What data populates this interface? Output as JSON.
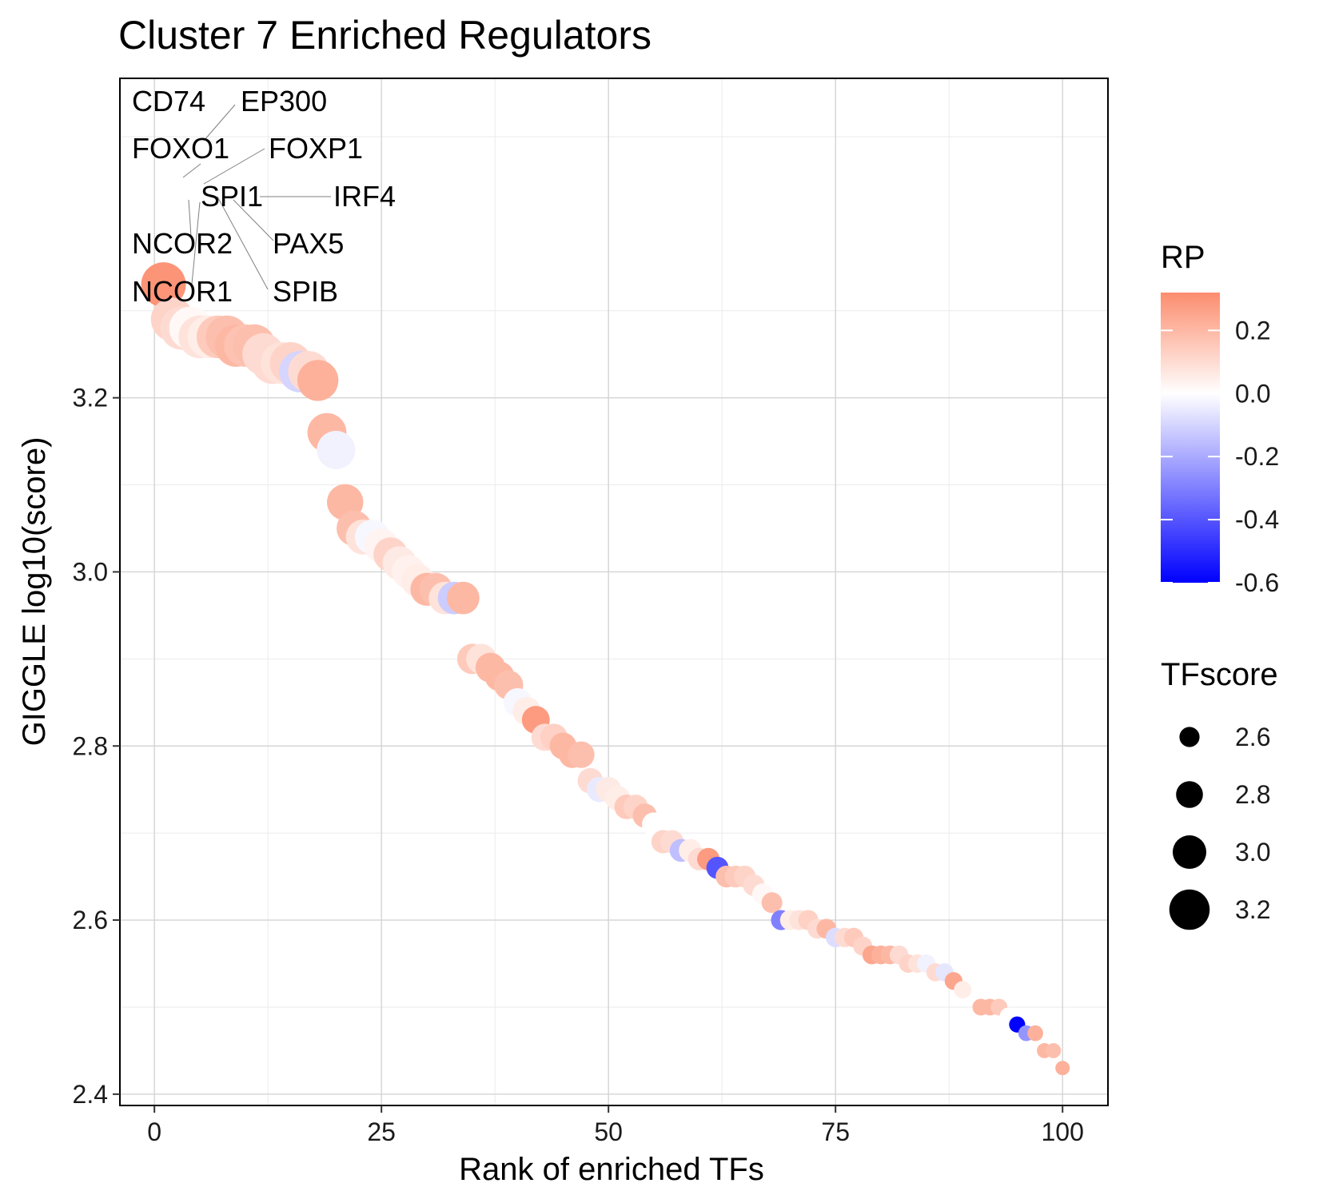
{
  "chart_data": {
    "type": "scatter",
    "title": "Cluster 7 Enriched Regulators",
    "xlabel": "Rank of enriched TFs",
    "ylabel": "GIGGLE log10(score)",
    "xlim": [
      -3.8,
      105
    ],
    "ylim": [
      2.387,
      3.567
    ],
    "x_ticks": [
      0,
      25,
      50,
      75,
      100
    ],
    "y_ticks": [
      2.4,
      2.6,
      2.8,
      3.0,
      3.2
    ],
    "grid": true,
    "legend_position": "right",
    "color_legend": {
      "title": "RP",
      "min": -0.6,
      "max": 0.32,
      "ticks": [
        0.2,
        0.0,
        -0.2,
        -0.4,
        -0.6
      ],
      "tick_labels": [
        "0.2",
        "0.0",
        "-0.2",
        "-0.4",
        "-0.6"
      ],
      "colors": {
        "high": "#fc8d6e",
        "mid": "#ffffff",
        "low": "#0000ff"
      }
    },
    "size_legend": {
      "title": "TFscore",
      "values": [
        2.6,
        2.8,
        3.0,
        3.2
      ],
      "labels": [
        "2.6",
        "2.8",
        "3.0",
        "3.2"
      ]
    },
    "points": [
      {
        "rank": 1,
        "score": 3.33,
        "rp": 0.3
      },
      {
        "rank": 2,
        "score": 3.29,
        "rp": 0.12
      },
      {
        "rank": 3,
        "score": 3.28,
        "rp": 0.1
      },
      {
        "rank": 4,
        "score": 3.28,
        "rp": 0.02
      },
      {
        "rank": 5,
        "score": 3.27,
        "rp": 0.08
      },
      {
        "rank": 6,
        "score": 3.27,
        "rp": 0.05
      },
      {
        "rank": 7,
        "score": 3.27,
        "rp": 0.15
      },
      {
        "rank": 8,
        "score": 3.27,
        "rp": 0.18
      },
      {
        "rank": 9,
        "score": 3.26,
        "rp": 0.2
      },
      {
        "rank": 10,
        "score": 3.26,
        "rp": 0.17
      },
      {
        "rank": 11,
        "score": 3.26,
        "rp": 0.18
      },
      {
        "rank": 12,
        "score": 3.25,
        "rp": 0.1
      },
      {
        "rank": 13,
        "score": 3.24,
        "rp": 0.1
      },
      {
        "rank": 14,
        "score": 3.24,
        "rp": 0.08
      },
      {
        "rank": 15,
        "score": 3.24,
        "rp": 0.12
      },
      {
        "rank": 16,
        "score": 3.23,
        "rp": -0.1
      },
      {
        "rank": 17,
        "score": 3.23,
        "rp": 0.1
      },
      {
        "rank": 18,
        "score": 3.22,
        "rp": 0.22
      },
      {
        "rank": 19,
        "score": 3.16,
        "rp": 0.2
      },
      {
        "rank": 20,
        "score": 3.14,
        "rp": -0.03
      },
      {
        "rank": 21,
        "score": 3.08,
        "rp": 0.2
      },
      {
        "rank": 22,
        "score": 3.05,
        "rp": 0.18
      },
      {
        "rank": 23,
        "score": 3.04,
        "rp": 0.08
      },
      {
        "rank": 24,
        "score": 3.04,
        "rp": -0.02
      },
      {
        "rank": 25,
        "score": 3.03,
        "rp": 0.03
      },
      {
        "rank": 26,
        "score": 3.02,
        "rp": 0.12
      },
      {
        "rank": 27,
        "score": 3.01,
        "rp": 0.06
      },
      {
        "rank": 28,
        "score": 3.0,
        "rp": 0.04
      },
      {
        "rank": 29,
        "score": 2.99,
        "rp": 0.05
      },
      {
        "rank": 30,
        "score": 2.98,
        "rp": 0.2
      },
      {
        "rank": 31,
        "score": 2.98,
        "rp": 0.18
      },
      {
        "rank": 32,
        "score": 2.97,
        "rp": 0.08
      },
      {
        "rank": 33,
        "score": 2.97,
        "rp": -0.12
      },
      {
        "rank": 34,
        "score": 2.97,
        "rp": 0.2
      },
      {
        "rank": 35,
        "score": 2.9,
        "rp": 0.15
      },
      {
        "rank": 36,
        "score": 2.9,
        "rp": 0.08
      },
      {
        "rank": 37,
        "score": 2.89,
        "rp": 0.2
      },
      {
        "rank": 38,
        "score": 2.88,
        "rp": 0.2
      },
      {
        "rank": 39,
        "score": 2.87,
        "rp": 0.18
      },
      {
        "rank": 40,
        "score": 2.85,
        "rp": -0.02
      },
      {
        "rank": 41,
        "score": 2.84,
        "rp": 0.05
      },
      {
        "rank": 42,
        "score": 2.83,
        "rp": 0.28
      },
      {
        "rank": 43,
        "score": 2.81,
        "rp": 0.1
      },
      {
        "rank": 44,
        "score": 2.81,
        "rp": 0.13
      },
      {
        "rank": 45,
        "score": 2.8,
        "rp": 0.2
      },
      {
        "rank": 46,
        "score": 2.79,
        "rp": 0.2
      },
      {
        "rank": 47,
        "score": 2.79,
        "rp": 0.18
      },
      {
        "rank": 48,
        "score": 2.76,
        "rp": 0.1
      },
      {
        "rank": 49,
        "score": 2.75,
        "rp": -0.05
      },
      {
        "rank": 50,
        "score": 2.75,
        "rp": 0.06
      },
      {
        "rank": 51,
        "score": 2.74,
        "rp": 0.05
      },
      {
        "rank": 52,
        "score": 2.73,
        "rp": 0.15
      },
      {
        "rank": 53,
        "score": 2.73,
        "rp": 0.12
      },
      {
        "rank": 54,
        "score": 2.72,
        "rp": 0.18
      },
      {
        "rank": 55,
        "score": 2.71,
        "rp": 0.0
      },
      {
        "rank": 56,
        "score": 2.69,
        "rp": 0.12
      },
      {
        "rank": 57,
        "score": 2.69,
        "rp": 0.1
      },
      {
        "rank": 58,
        "score": 2.68,
        "rp": -0.15
      },
      {
        "rank": 59,
        "score": 2.68,
        "rp": 0.05
      },
      {
        "rank": 60,
        "score": 2.67,
        "rp": 0.1
      },
      {
        "rank": 61,
        "score": 2.67,
        "rp": 0.28
      },
      {
        "rank": 62,
        "score": 2.66,
        "rp": -0.4
      },
      {
        "rank": 63,
        "score": 2.65,
        "rp": 0.18
      },
      {
        "rank": 64,
        "score": 2.65,
        "rp": 0.15
      },
      {
        "rank": 65,
        "score": 2.65,
        "rp": 0.12
      },
      {
        "rank": 66,
        "score": 2.64,
        "rp": 0.1
      },
      {
        "rank": 67,
        "score": 2.63,
        "rp": 0.02
      },
      {
        "rank": 68,
        "score": 2.62,
        "rp": 0.18
      },
      {
        "rank": 69,
        "score": 2.6,
        "rp": -0.3
      },
      {
        "rank": 70,
        "score": 2.6,
        "rp": 0.05
      },
      {
        "rank": 71,
        "score": 2.6,
        "rp": 0.08
      },
      {
        "rank": 72,
        "score": 2.6,
        "rp": 0.13
      },
      {
        "rank": 73,
        "score": 2.59,
        "rp": 0.1
      },
      {
        "rank": 74,
        "score": 2.59,
        "rp": 0.2
      },
      {
        "rank": 75,
        "score": 2.58,
        "rp": -0.08
      },
      {
        "rank": 76,
        "score": 2.58,
        "rp": 0.1
      },
      {
        "rank": 77,
        "score": 2.58,
        "rp": 0.15
      },
      {
        "rank": 78,
        "score": 2.57,
        "rp": 0.12
      },
      {
        "rank": 79,
        "score": 2.56,
        "rp": 0.25
      },
      {
        "rank": 80,
        "score": 2.56,
        "rp": 0.22
      },
      {
        "rank": 81,
        "score": 2.56,
        "rp": 0.2
      },
      {
        "rank": 82,
        "score": 2.56,
        "rp": 0.1
      },
      {
        "rank": 83,
        "score": 2.55,
        "rp": 0.12
      },
      {
        "rank": 84,
        "score": 2.55,
        "rp": 0.08
      },
      {
        "rank": 85,
        "score": 2.55,
        "rp": -0.03
      },
      {
        "rank": 86,
        "score": 2.54,
        "rp": 0.1
      },
      {
        "rank": 87,
        "score": 2.54,
        "rp": -0.06
      },
      {
        "rank": 88,
        "score": 2.53,
        "rp": 0.25
      },
      {
        "rank": 89,
        "score": 2.52,
        "rp": 0.05
      },
      {
        "rank": 91,
        "score": 2.5,
        "rp": 0.2
      },
      {
        "rank": 92,
        "score": 2.5,
        "rp": 0.2
      },
      {
        "rank": 93,
        "score": 2.5,
        "rp": 0.15
      },
      {
        "rank": 94,
        "score": 2.49,
        "rp": 0.0
      },
      {
        "rank": 95,
        "score": 2.48,
        "rp": -0.6
      },
      {
        "rank": 96,
        "score": 2.47,
        "rp": -0.25
      },
      {
        "rank": 97,
        "score": 2.47,
        "rp": 0.22
      },
      {
        "rank": 98,
        "score": 2.45,
        "rp": 0.2
      },
      {
        "rank": 99,
        "score": 2.45,
        "rp": 0.18
      },
      {
        "rank": 100,
        "score": 2.43,
        "rp": 0.22
      }
    ],
    "annotations": [
      "CD74",
      "EP300",
      "FOXO1",
      "FOXP1",
      "SPI1",
      "IRF4",
      "NCOR2",
      "PAX5",
      "NCOR1",
      "SPIB"
    ]
  }
}
